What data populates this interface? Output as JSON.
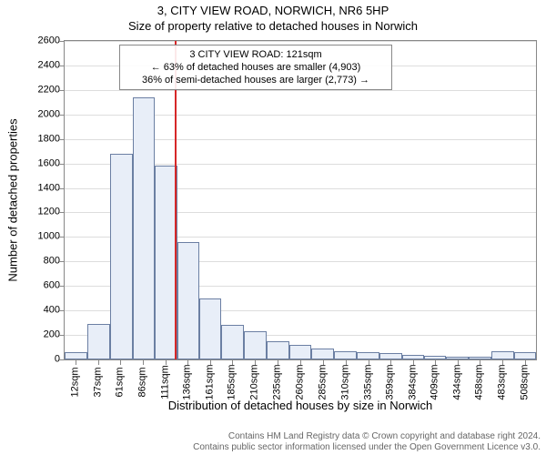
{
  "titles": {
    "line1": "3, CITY VIEW ROAD, NORWICH, NR6 5HP",
    "line2": "Size of property relative to detached houses in Norwich"
  },
  "axes": {
    "ylabel": "Number of detached properties",
    "xlabel": "Distribution of detached houses by size in Norwich",
    "ylim": [
      0,
      2600
    ],
    "ytick_step": 200,
    "ytick_labels": [
      "0",
      "200",
      "400",
      "600",
      "800",
      "1000",
      "1200",
      "1400",
      "1600",
      "1800",
      "2000",
      "2200",
      "2400",
      "2600"
    ],
    "xtick_labels": [
      "12sqm",
      "37sqm",
      "61sqm",
      "86sqm",
      "111sqm",
      "136sqm",
      "161sqm",
      "185sqm",
      "210sqm",
      "235sqm",
      "260sqm",
      "285sqm",
      "310sqm",
      "335sqm",
      "359sqm",
      "384sqm",
      "409sqm",
      "434sqm",
      "458sqm",
      "483sqm",
      "508sqm"
    ],
    "xtick_positions": [
      12,
      37,
      61,
      86,
      111,
      136,
      161,
      185,
      210,
      235,
      260,
      285,
      310,
      335,
      359,
      384,
      409,
      434,
      458,
      483,
      508
    ],
    "xlim": [
      0,
      520
    ],
    "label_fontsize": 13,
    "tick_fontsize": 11,
    "grid_color": "#dddddd",
    "border_color": "#888888"
  },
  "chart": {
    "type": "histogram",
    "bar_fill": "#e8eef8",
    "bar_border": "#6b7fa3",
    "background_color": "#ffffff",
    "bin_edges": [
      0,
      25,
      50,
      75,
      99,
      124,
      149,
      173,
      198,
      223,
      248,
      272,
      297,
      322,
      347,
      372,
      397,
      421,
      446,
      471,
      496,
      520
    ],
    "counts": [
      60,
      290,
      1680,
      2140,
      1580,
      960,
      500,
      280,
      230,
      150,
      120,
      90,
      70,
      60,
      50,
      40,
      30,
      25,
      20,
      65,
      60
    ]
  },
  "reference": {
    "value_x": 121,
    "color": "#d62728",
    "width": 2
  },
  "annotation": {
    "lines": [
      "3 CITY VIEW ROAD: 121sqm",
      "← 63% of detached houses are smaller (4,903)",
      "36% of semi-detached houses are larger (2,773) →"
    ],
    "border_color": "#888888",
    "bg_color": "rgba(255,255,255,0.9)",
    "fontsize": 11
  },
  "footer": {
    "lines": [
      "Contains HM Land Registry data © Crown copyright and database right 2024.",
      "Contains public sector information licensed under the Open Government Licence v3.0."
    ],
    "color": "#666666",
    "fontsize": 10
  }
}
